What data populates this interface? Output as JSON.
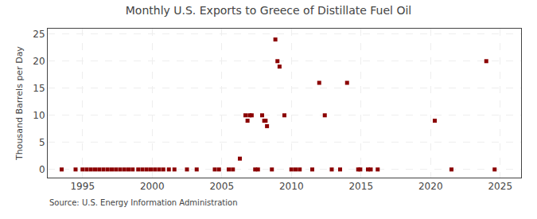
{
  "chart_data": {
    "type": "scatter",
    "title": "Monthly U.S. Exports to Greece of Distillate Fuel Oil",
    "ylabel": "Thousand Barrels per Day",
    "annotations": [
      "Source: U.S. Energy Information Administration"
    ],
    "x": [
      1993.5,
      1994.5,
      1995.0,
      1995.3,
      1995.6,
      1995.9,
      1996.2,
      1996.5,
      1996.8,
      1997.1,
      1997.4,
      1997.7,
      1998.0,
      1998.3,
      1998.6,
      1999.0,
      1999.3,
      1999.6,
      1999.9,
      2000.2,
      2000.5,
      2000.8,
      2001.2,
      2001.6,
      2002.5,
      2003.2,
      2004.5,
      2004.8,
      2005.5,
      2005.8,
      2006.3,
      2006.7,
      2006.85,
      2007.0,
      2007.15,
      2007.4,
      2007.6,
      2007.9,
      2008.05,
      2008.15,
      2008.25,
      2008.6,
      2008.85,
      2009.0,
      2009.15,
      2009.5,
      2010.0,
      2010.3,
      2010.6,
      2011.5,
      2012.0,
      2012.4,
      2012.9,
      2013.5,
      2014.0,
      2014.8,
      2014.95,
      2015.5,
      2015.7,
      2016.2,
      2020.3,
      2021.5,
      2024.0,
      2024.6
    ],
    "values": [
      0,
      0,
      0,
      0,
      0,
      0,
      0,
      0,
      0,
      0,
      0,
      0,
      0,
      0,
      0,
      0,
      0,
      0,
      0,
      0,
      0,
      0,
      0,
      0,
      0,
      0,
      0,
      0,
      0,
      0,
      2,
      10,
      9,
      10,
      10,
      0,
      0,
      10,
      9,
      9,
      8,
      0,
      24,
      20,
      19,
      10,
      0,
      0,
      0,
      0,
      16,
      10,
      0,
      0,
      16,
      0,
      0,
      0,
      0,
      0,
      9,
      0,
      20,
      0
    ],
    "color": "#8b0000",
    "marker": "square",
    "xlim": [
      1992.5,
      2026.5
    ],
    "xticks": [
      1995,
      2000,
      2005,
      2010,
      2015,
      2020,
      2025
    ],
    "ylim": [
      -1.5,
      26
    ],
    "yticks": [
      0,
      5,
      10,
      15,
      20,
      25
    ],
    "grid": true
  }
}
